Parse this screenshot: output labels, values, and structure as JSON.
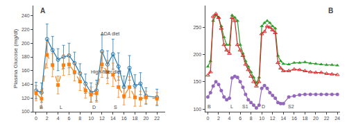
{
  "chart_data": [
    {
      "type": "line",
      "title": "A",
      "ylabel": "Plasma Glucose (mg/dl)",
      "grid": false,
      "x": [
        0,
        1,
        2,
        3,
        4,
        5,
        6,
        7,
        8,
        9,
        10,
        11,
        12,
        13,
        14,
        15,
        16,
        17,
        18,
        19,
        20,
        22
      ],
      "series": [
        {
          "values": [
            131,
            128,
            206,
            190,
            176,
            180,
            182,
            171,
            156,
            141,
            128,
            131,
            188,
            169,
            184,
            166,
            136,
            164,
            138,
            141,
            123,
            121
          ],
          "errors": [
            12,
            14,
            22,
            20,
            16,
            17,
            18,
            16,
            14,
            14,
            14,
            15,
            24,
            20,
            22,
            20,
            16,
            18,
            16,
            16,
            12,
            12
          ],
          "marker": "circle-open",
          "line_style": "solid"
        },
        {
          "values": [
            127,
            119,
            183,
            168,
            139,
            168,
            169,
            158,
            144,
            131,
            125,
            127,
            169,
            158,
            154,
            136,
            123,
            136,
            121,
            119,
            121,
            119
          ],
          "errors": [
            11,
            13,
            19,
            17,
            13,
            15,
            15,
            13,
            13,
            11,
            11,
            13,
            19,
            17,
            17,
            15,
            13,
            15,
            13,
            11,
            9,
            9
          ],
          "marker": "square",
          "line_style": "dash"
        }
      ],
      "xlim": [
        -0.5,
        23.5
      ],
      "xticks": [
        0,
        2,
        4,
        6,
        8,
        10,
        12,
        14,
        16,
        18,
        20,
        22
      ],
      "ylim": [
        100,
        255
      ],
      "yticks": [
        100,
        120,
        140,
        160,
        180,
        200,
        220,
        240
      ],
      "annotations": [
        {
          "text": "B",
          "x": 1.0,
          "y": 101
        },
        {
          "text": "L",
          "x": 4.5,
          "y": 101
        },
        {
          "text": "D",
          "x": 10.5,
          "y": 101
        },
        {
          "text": "S",
          "x": 14.5,
          "y": 101
        },
        {
          "text": "ADA diet",
          "x": 13.5,
          "y": 208
        },
        {
          "text": "High-fiber diet",
          "x": 12.8,
          "y": 152
        }
      ]
    },
    {
      "type": "line",
      "title": "B",
      "grid": false,
      "x": [
        0,
        0.5,
        1,
        1.5,
        2,
        2.5,
        3,
        3.5,
        4,
        4.5,
        5,
        5.5,
        6,
        6.5,
        7,
        7.5,
        8,
        8.5,
        9,
        9.5,
        10,
        10.5,
        11,
        11.5,
        12,
        12.5,
        13,
        13.5,
        14,
        15,
        16,
        17,
        18,
        19,
        20,
        21,
        22,
        23,
        24
      ],
      "series": [
        {
          "values": [
            178,
            188,
            262,
            272,
            268,
            252,
            232,
            218,
            218,
            272,
            268,
            262,
            218,
            202,
            188,
            178,
            168,
            158,
            148,
            158,
            252,
            258,
            262,
            258,
            252,
            248,
            198,
            188,
            183,
            182,
            185,
            185,
            186,
            184,
            183,
            182,
            181,
            181,
            180
          ],
          "marker": "triangle-up",
          "line_style": "solid"
        },
        {
          "values": [
            162,
            168,
            270,
            275,
            268,
            248,
            218,
            208,
            202,
            268,
            262,
            218,
            208,
            198,
            182,
            172,
            160,
            150,
            142,
            150,
            238,
            242,
            252,
            250,
            245,
            240,
            185,
            175,
            170,
            170,
            173,
            172,
            170,
            168,
            167,
            167,
            165,
            164,
            163
          ],
          "marker": "triangle-up-open",
          "line_style": "solid"
        },
        {
          "values": [
            122,
            130,
            142,
            150,
            145,
            134,
            122,
            117,
            120,
            157,
            160,
            158,
            150,
            140,
            127,
            117,
            112,
            107,
            102,
            107,
            138,
            143,
            138,
            130,
            125,
            120,
            112,
            110,
            110,
            122,
            124,
            126,
            127,
            127,
            127,
            127,
            127,
            127,
            127
          ],
          "marker": "circle",
          "line_style": "solid"
        }
      ],
      "xlim": [
        -0.5,
        24.5
      ],
      "xticks": [
        0,
        2,
        4,
        6,
        8,
        10,
        12,
        14,
        16,
        18,
        20,
        22,
        24
      ],
      "ylim": [
        95,
        290
      ],
      "yticks": [
        100,
        150,
        200,
        250
      ],
      "annotations": [
        {
          "text": "B",
          "x": 0.3,
          "y": 97
        },
        {
          "text": "L",
          "x": 4.5,
          "y": 97
        },
        {
          "text": "S1",
          "x": 7.0,
          "y": 97
        },
        {
          "text": "D",
          "x": 10.3,
          "y": 97
        },
        {
          "text": "S2",
          "x": 15.5,
          "y": 97
        }
      ]
    }
  ]
}
